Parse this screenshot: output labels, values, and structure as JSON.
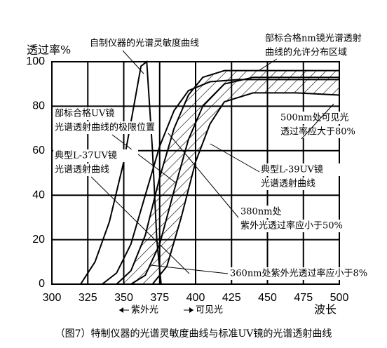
{
  "chart_data": {
    "type": "line",
    "y_label": "透过率%",
    "x_label": "波长",
    "caption": "（图7）特制仪器的光谱灵敏度曲线与标准UV镜的光谱透射曲线",
    "bands": [
      "紫外光",
      "可见光"
    ],
    "annotations": [
      [
        "自制仪器的光谱灵敏度曲线"
      ],
      [
        "部标合格nm镜光谱透射",
        "曲线的允许分布区域"
      ],
      [
        "500nm处可见光",
        "透过率应大于80%"
      ],
      [
        "部标合格UV镜",
        "光谱透射曲线的极限位置"
      ],
      [
        "典型L-37UV镜",
        "光谱透射曲线"
      ],
      [
        "典型L-39UV镜",
        "光谱透射曲线"
      ],
      [
        "380nm处",
        "紫外光透过率应小于50%"
      ],
      [
        "360nm处紫外光透过率应小于8%"
      ]
    ],
    "xlim": [
      300,
      500
    ],
    "xticks": [
      300,
      325,
      350,
      375,
      400,
      425,
      450,
      475,
      500
    ],
    "ylim": [
      0,
      100
    ],
    "yticks": [
      0,
      20,
      40,
      60,
      80,
      100
    ],
    "grid": true,
    "series": [
      {
        "color": "#000000",
        "x": [
          320,
          330,
          340,
          350,
          357,
          362,
          366,
          370,
          373,
          376
        ],
        "values": [
          0,
          10,
          28,
          55,
          80,
          98,
          100,
          60,
          20,
          0
        ]
      },
      {
        "color": "#000000",
        "x": [
          335,
          345,
          355,
          365,
          375,
          385,
          395,
          410,
          430,
          460,
          500
        ],
        "values": [
          0,
          5,
          18,
          40,
          62,
          78,
          87,
          91,
          92,
          92,
          92
        ]
      },
      {
        "color": "#000000",
        "x": [
          345,
          355,
          365,
          375,
          385,
          395,
          405,
          420,
          440,
          470,
          500
        ],
        "values": [
          0,
          6,
          22,
          48,
          70,
          85,
          93,
          96,
          96,
          96,
          96
        ]
      },
      {
        "color": "#000000",
        "x": [
          355,
          365,
          375,
          385,
          395,
          405,
          420,
          440,
          470,
          500
        ],
        "values": [
          0,
          4,
          18,
          42,
          65,
          80,
          90,
          93,
          93,
          93
        ]
      },
      {
        "color": "#000000",
        "x": [
          370,
          380,
          390,
          400,
          410,
          420,
          440,
          470,
          500
        ],
        "values": [
          0,
          8,
          30,
          55,
          72,
          82,
          86,
          86,
          85
        ]
      }
    ]
  }
}
